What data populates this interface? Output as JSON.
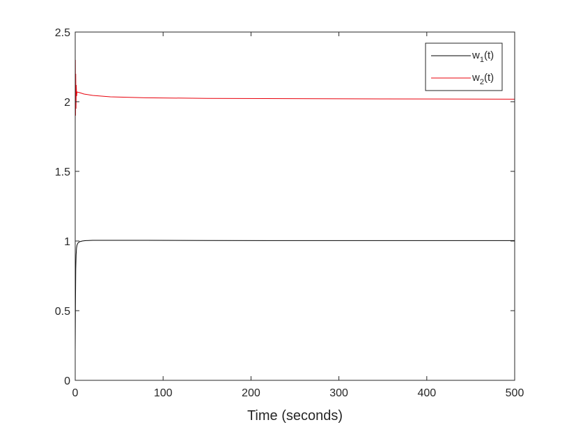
{
  "chart_data": {
    "type": "line",
    "title": "",
    "xlabel": "Time (seconds)",
    "ylabel": "",
    "xlim": [
      0,
      500
    ],
    "ylim": [
      0,
      2.5
    ],
    "xticks": [
      "0",
      "100",
      "200",
      "300",
      "400",
      "500"
    ],
    "yticks": [
      "0",
      "0.5",
      "1",
      "1.5",
      "2",
      "2.5"
    ],
    "grid": false,
    "legend_position": "top-right",
    "series": [
      {
        "name": "w1(t)",
        "legend_base": "w",
        "legend_sub": "1",
        "legend_tail": "(t)",
        "color": "#000000",
        "x": [
          0,
          0.3,
          0.6,
          1,
          1.5,
          2,
          3,
          5,
          8,
          12,
          20,
          40,
          80,
          150,
          250,
          350,
          500
        ],
        "y": [
          0.2,
          0.55,
          0.8,
          0.9,
          0.95,
          0.97,
          0.985,
          0.995,
          1.0,
          1.003,
          1.005,
          1.005,
          1.005,
          1.004,
          1.003,
          1.003,
          1.003
        ]
      },
      {
        "name": "w2(t)",
        "legend_base": "w",
        "legend_sub": "2",
        "legend_tail": "(t)",
        "color": "#e8000b",
        "x": [
          0,
          0.2,
          0.4,
          0.6,
          0.9,
          1.2,
          1.6,
          2,
          3,
          5,
          10,
          20,
          40,
          80,
          150,
          250,
          350,
          500
        ],
        "y": [
          1.83,
          2.3,
          1.9,
          2.2,
          1.95,
          2.12,
          2.04,
          2.07,
          2.068,
          2.065,
          2.055,
          2.045,
          2.035,
          2.028,
          2.024,
          2.022,
          2.02,
          2.018
        ]
      }
    ]
  }
}
